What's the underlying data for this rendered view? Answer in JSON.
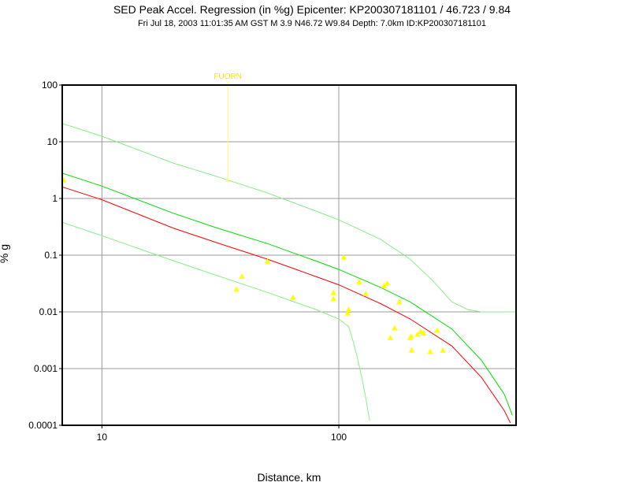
{
  "chart_data": {
    "type": "scatter",
    "title": "SED Peak Accel. Regression (in %g) Epicenter: KP200307181101 / 46.723 / 9.84",
    "subtitle": "Fri Jul 18, 2003 11:01:35 AM GST   M 3.9    N46.72 W9.84   Depth: 7.0km   ID:KP200307181101",
    "xlabel": "Distance, km",
    "ylabel": "% g",
    "x_scale": "log",
    "y_scale": "log",
    "xlim": [
      6.8,
      560
    ],
    "ylim": [
      0.0001,
      100
    ],
    "grid": true,
    "x_ticks": [
      {
        "v": 10,
        "label": "10"
      },
      {
        "v": 100,
        "label": "100"
      }
    ],
    "y_ticks": [
      {
        "v": 100,
        "label": "100"
      },
      {
        "v": 10,
        "label": "10"
      },
      {
        "v": 1,
        "label": "1"
      },
      {
        "v": 0.1,
        "label": "0.1"
      },
      {
        "v": 0.01,
        "label": "0.01"
      },
      {
        "v": 0.001,
        "label": "0.001"
      },
      {
        "v": 0.0001,
        "label": "0.0001"
      }
    ],
    "annotation": {
      "text": "FUORN",
      "x": 34.0,
      "y": 2.0
    },
    "stations": {
      "name": "stations",
      "color": "#ffff00",
      "points": [
        [
          6.9,
          2.1
        ],
        [
          37,
          0.025
        ],
        [
          39,
          0.042
        ],
        [
          50,
          0.078
        ],
        [
          64,
          0.018
        ],
        [
          95,
          0.022
        ],
        [
          95,
          0.017
        ],
        [
          105,
          0.092
        ],
        [
          109,
          0.0095
        ],
        [
          110,
          0.011
        ],
        [
          122,
          0.034
        ],
        [
          130,
          0.021
        ],
        [
          155,
          0.029
        ],
        [
          160,
          0.032
        ],
        [
          165,
          0.0035
        ],
        [
          172,
          0.0052
        ],
        [
          180,
          0.015
        ],
        [
          200,
          0.0035
        ],
        [
          202,
          0.0037
        ],
        [
          203,
          0.0021
        ],
        [
          215,
          0.004
        ],
        [
          222,
          0.0045
        ],
        [
          228,
          0.0042
        ],
        [
          243,
          0.002
        ],
        [
          260,
          0.0047
        ],
        [
          275,
          0.0021
        ]
      ]
    },
    "series": [
      {
        "color": "#ff0000",
        "x": [
          6.8,
          10,
          20,
          30,
          50,
          80,
          100,
          150,
          200,
          300,
          400,
          500,
          530
        ],
        "y": [
          1.6,
          0.95,
          0.3,
          0.17,
          0.085,
          0.042,
          0.03,
          0.014,
          0.0075,
          0.0025,
          0.0007,
          0.00018,
          0.00011
        ]
      },
      {
        "color": "#00dd00",
        "x": [
          6.8,
          10,
          20,
          30,
          50,
          80,
          100,
          150,
          200,
          300,
          400,
          500,
          540
        ],
        "y": [
          2.8,
          1.65,
          0.55,
          0.31,
          0.16,
          0.079,
          0.056,
          0.027,
          0.015,
          0.005,
          0.0014,
          0.00035,
          0.00015
        ]
      },
      {
        "color": "#88ee88",
        "x": [
          6.8,
          10,
          20,
          30,
          50,
          80,
          100,
          150,
          200,
          250,
          300,
          350,
          400,
          500,
          560
        ],
        "y": [
          21,
          12.5,
          4.2,
          2.5,
          1.25,
          0.6,
          0.42,
          0.19,
          0.085,
          0.035,
          0.015,
          0.011,
          0.01,
          0.01,
          0.01
        ]
      },
      {
        "color": "#88ee88",
        "x": [
          6.8,
          10,
          20,
          30,
          50,
          80,
          100,
          110,
          115,
          120,
          125,
          130,
          135
        ],
        "y": [
          0.38,
          0.22,
          0.08,
          0.045,
          0.022,
          0.011,
          0.0075,
          0.0055,
          0.003,
          0.0015,
          0.0007,
          0.0003,
          0.00012
        ]
      }
    ]
  }
}
